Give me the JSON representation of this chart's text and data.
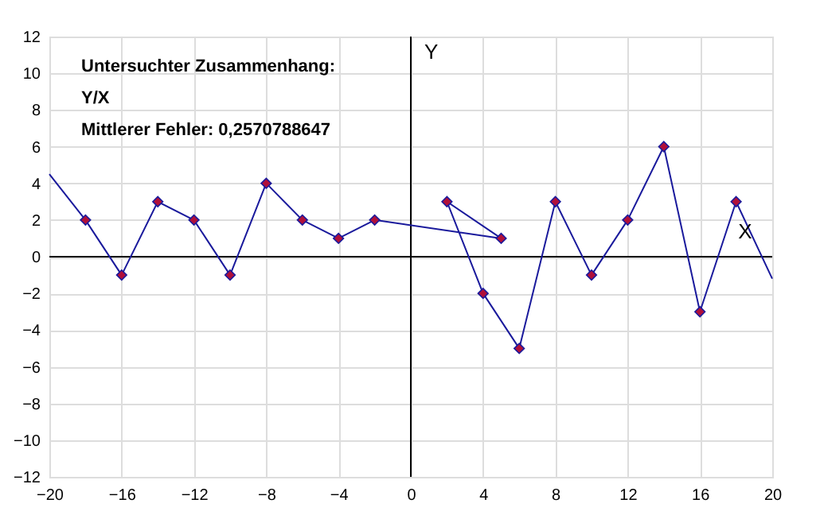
{
  "chart_data": {
    "type": "line",
    "xlabel": "X",
    "ylabel": "Y",
    "annotations": [
      "Untersuchter Zusammenhang:",
      "Y/X",
      "Mittlerer Fehler: 0,2570788647"
    ],
    "xlim": [
      -20,
      20
    ],
    "ylim": [
      -12,
      12
    ],
    "xticks": [
      -20,
      -16,
      -12,
      -8,
      -4,
      0,
      4,
      8,
      12,
      16,
      20
    ],
    "yticks": [
      -12,
      -10,
      -8,
      -6,
      -4,
      -2,
      0,
      2,
      4,
      6,
      8,
      10,
      12
    ],
    "grid": true,
    "series": [
      {
        "color": "#1a1a9c",
        "line_style": "solid",
        "marker": "none",
        "x": [
          -20,
          -18,
          -16,
          -14,
          -12,
          -10,
          -8,
          -6,
          -4,
          -2,
          5,
          2,
          4,
          6,
          8,
          10,
          12,
          14,
          16,
          18,
          20
        ],
        "values": [
          4.5,
          2,
          -1,
          3,
          2,
          -1,
          4,
          2,
          1,
          2,
          1,
          3,
          -2,
          -5,
          3,
          -1,
          2,
          6,
          -3,
          3,
          -1.2
        ]
      },
      {
        "type": "scatter",
        "color": "#b0103a",
        "marker": "diamond",
        "x": [
          -18,
          -16,
          -14,
          -12,
          -10,
          -8,
          -6,
          -4,
          -2,
          5,
          2,
          4,
          6,
          8,
          10,
          12,
          14,
          16,
          18
        ],
        "values": [
          2,
          -1,
          3,
          2,
          -1,
          4,
          2,
          1,
          2,
          1,
          3,
          -2,
          -5,
          3,
          -1,
          2,
          6,
          -3,
          3
        ]
      }
    ]
  }
}
